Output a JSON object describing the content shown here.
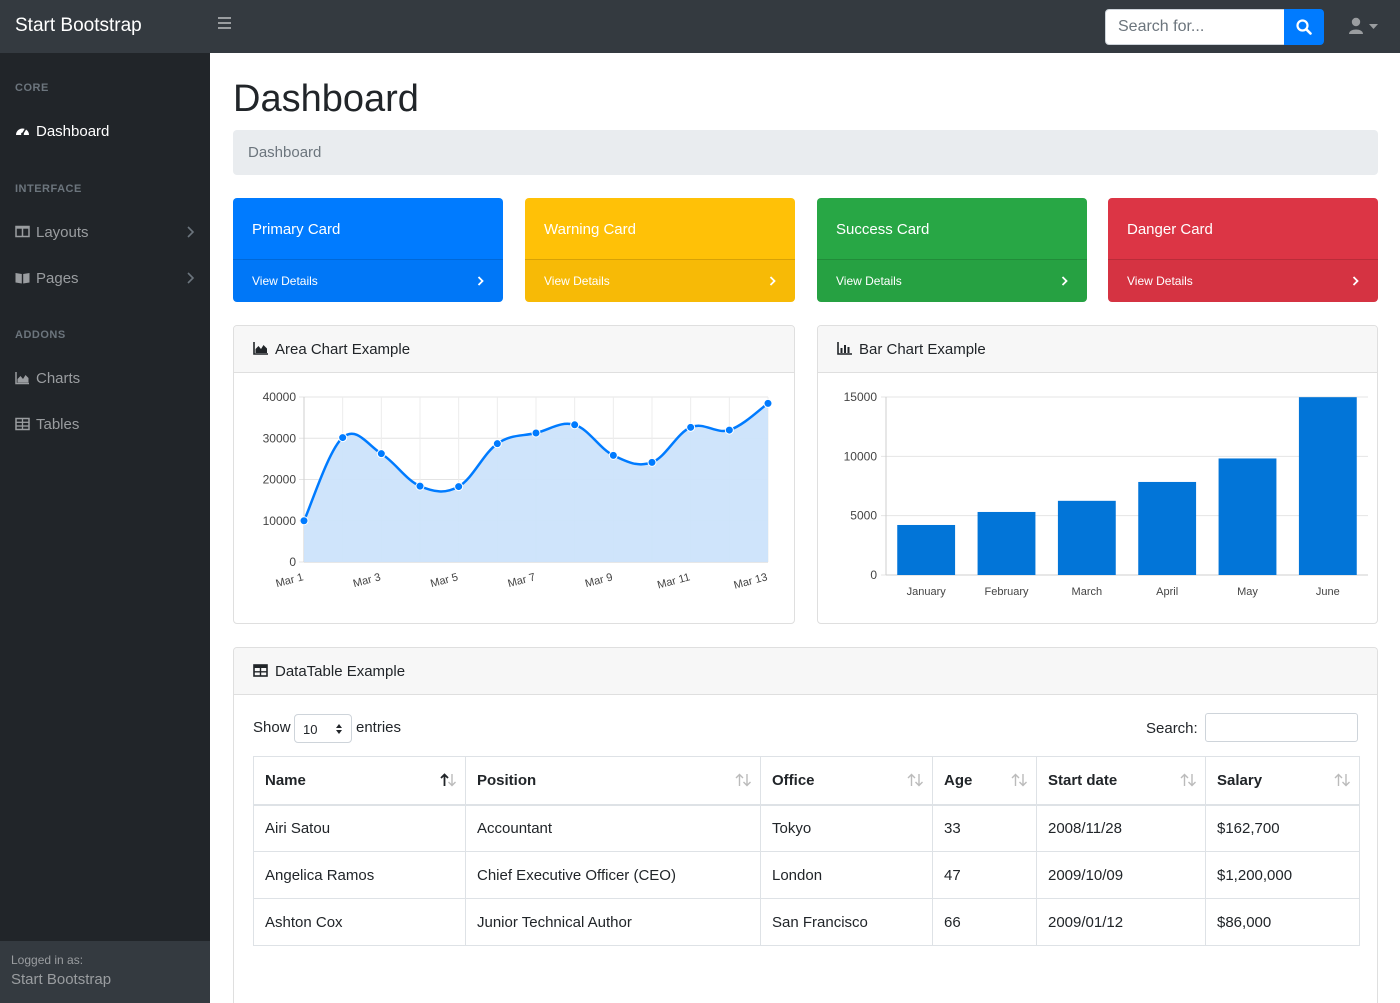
{
  "navbar": {
    "brand": "Start Bootstrap",
    "search_placeholder": "Search for...",
    "icons": [
      "bars-icon",
      "search-icon",
      "user-icon",
      "caret-down-icon"
    ]
  },
  "sidebar": {
    "headings": {
      "core": "CORE",
      "interface": "INTERFACE",
      "addons": "ADDONS"
    },
    "items": [
      {
        "label": "Dashboard",
        "icon": "tachometer-icon",
        "active": true
      },
      {
        "label": "Layouts",
        "icon": "columns-icon"
      },
      {
        "label": "Pages",
        "icon": "book-open-icon"
      },
      {
        "label": "Charts",
        "icon": "area-chart-icon"
      },
      {
        "label": "Tables",
        "icon": "table-icon"
      }
    ],
    "footer": {
      "logged_in_label": "Logged in as:",
      "user": "Start Bootstrap"
    }
  },
  "main": {
    "title": "Dashboard",
    "breadcrumb": "Dashboard",
    "cards": [
      {
        "title": "Primary Card",
        "link": "View Details",
        "color": "#007bff"
      },
      {
        "title": "Warning Card",
        "link": "View Details",
        "color": "#ffc107"
      },
      {
        "title": "Success Card",
        "link": "View Details",
        "color": "#28a745"
      },
      {
        "title": "Danger Card",
        "link": "View Details",
        "color": "#dc3545"
      }
    ]
  },
  "area_panel": {
    "title": "Area Chart Example"
  },
  "bar_panel": {
    "title": "Bar Chart Example"
  },
  "chart_data": [
    {
      "type": "area",
      "title": "Area Chart Example",
      "x": [
        "Mar 1",
        "Mar 2",
        "Mar 3",
        "Mar 4",
        "Mar 5",
        "Mar 6",
        "Mar 7",
        "Mar 8",
        "Mar 9",
        "Mar 10",
        "Mar 11",
        "Mar 12",
        "Mar 13"
      ],
      "x_tick_labels": [
        "Mar 1",
        "Mar 3",
        "Mar 5",
        "Mar 7",
        "Mar 9",
        "Mar 11",
        "Mar 13"
      ],
      "values": [
        10000,
        30162,
        26263,
        18394,
        18287,
        28682,
        31274,
        33259,
        25849,
        24159,
        32651,
        31984,
        38451
      ],
      "y_ticks": [
        0,
        10000,
        20000,
        30000,
        40000
      ],
      "ylim": [
        0,
        40000
      ],
      "grid": true,
      "color": "#007bff",
      "fill": "#cce3fb"
    },
    {
      "type": "bar",
      "title": "Bar Chart Example",
      "categories": [
        "January",
        "February",
        "March",
        "April",
        "May",
        "June"
      ],
      "values": [
        4215,
        5312,
        6251,
        7841,
        9821,
        14984
      ],
      "y_ticks": [
        0,
        5000,
        10000,
        15000
      ],
      "ylim": [
        0,
        15000
      ],
      "grid": true,
      "color": "#0275d8"
    }
  ],
  "datatable": {
    "title": "DataTable Example",
    "show_label": "Show",
    "entries_value": "10",
    "entries_label": "entries",
    "search_label": "Search:",
    "columns": [
      "Name",
      "Position",
      "Office",
      "Age",
      "Start date",
      "Salary"
    ],
    "rows": [
      [
        "Airi Satou",
        "Accountant",
        "Tokyo",
        "33",
        "2008/11/28",
        "$162,700"
      ],
      [
        "Angelica Ramos",
        "Chief Executive Officer (CEO)",
        "London",
        "47",
        "2009/10/09",
        "$1,200,000"
      ],
      [
        "Ashton Cox",
        "Junior Technical Author",
        "San Francisco",
        "66",
        "2009/01/12",
        "$86,000"
      ]
    ]
  }
}
